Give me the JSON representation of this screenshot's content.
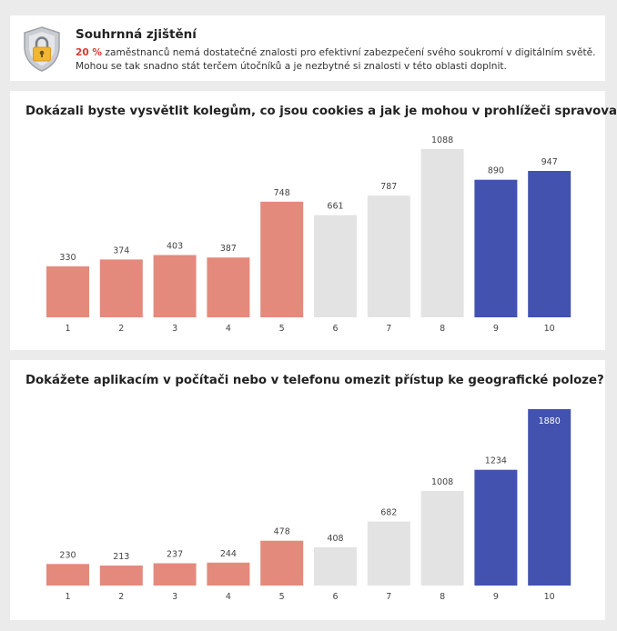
{
  "summary": {
    "title": "Souhrnná zjištění",
    "percent": "20 %",
    "line1_rest": " zaměstnanců nemá dostatečné znalosti pro efektivní zabezpečení svého soukromí v digitálním světě.",
    "line2": "Mohou se tak snadno stát terčem útočníků a je nezbytné si znalosti v této oblasti doplnit.",
    "icon": "shield-lock-icon"
  },
  "colors": {
    "low": "#e38a7c",
    "mid": "#e3e3e3",
    "high": "#4252ae",
    "highlight": "#d73a32"
  },
  "chart_data": [
    {
      "type": "bar",
      "title": "Dokázali byste vysvětlit kolegům, co jsou cookies a jak je mohou v prohlížeči spravovat?",
      "categories": [
        "1",
        "2",
        "3",
        "4",
        "5",
        "6",
        "7",
        "8",
        "9",
        "10"
      ],
      "values": [
        330,
        374,
        403,
        387,
        748,
        661,
        787,
        1088,
        890,
        947
      ],
      "groups": [
        "low",
        "low",
        "low",
        "low",
        "low",
        "mid",
        "mid",
        "mid",
        "high",
        "high"
      ],
      "ylim": [
        0,
        1088
      ],
      "xlabel": "",
      "ylabel": "",
      "grid": false
    },
    {
      "type": "bar",
      "title": "Dokážete aplikacím v počítači nebo v telefonu omezit přístup ke geografické poloze?",
      "categories": [
        "1",
        "2",
        "3",
        "4",
        "5",
        "6",
        "7",
        "8",
        "9",
        "10"
      ],
      "values": [
        230,
        213,
        237,
        244,
        478,
        408,
        682,
        1008,
        1234,
        1880
      ],
      "groups": [
        "low",
        "low",
        "low",
        "low",
        "low",
        "mid",
        "mid",
        "mid",
        "high",
        "high"
      ],
      "ylim": [
        0,
        1880
      ],
      "xlabel": "",
      "ylabel": "",
      "grid": false
    }
  ]
}
